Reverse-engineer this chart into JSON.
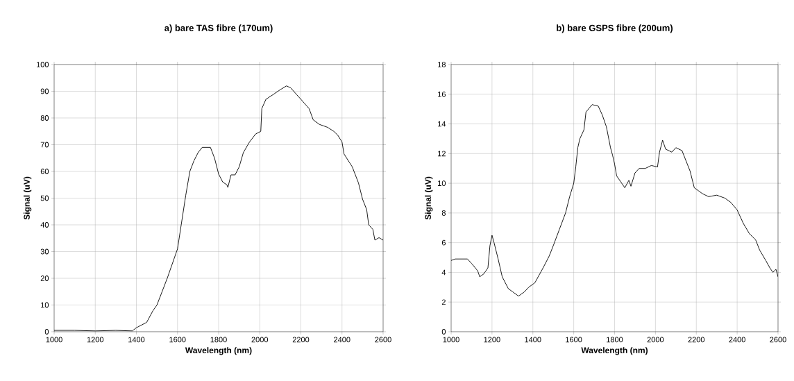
{
  "chart_data": [
    {
      "type": "line",
      "title": "a) bare TAS fibre (170um)",
      "xlabel": "Wavelength (nm)",
      "ylabel": "Signal (uV)",
      "color": "#000000",
      "grid": true,
      "xlim": [
        1000,
        2600
      ],
      "ylim": [
        0,
        100
      ],
      "xticks": [
        1000,
        1200,
        1400,
        1600,
        1800,
        2000,
        2200,
        2400,
        2600
      ],
      "yticks": [
        0,
        10,
        20,
        30,
        40,
        50,
        60,
        70,
        80,
        90,
        100
      ],
      "x": [
        1000,
        1100,
        1200,
        1300,
        1380,
        1400,
        1450,
        1480,
        1500,
        1550,
        1600,
        1620,
        1640,
        1660,
        1680,
        1700,
        1720,
        1760,
        1780,
        1800,
        1820,
        1840,
        1845,
        1860,
        1880,
        1900,
        1920,
        1950,
        1980,
        2005,
        2010,
        2030,
        2060,
        2100,
        2130,
        2150,
        2180,
        2200,
        2240,
        2260,
        2290,
        2330,
        2360,
        2380,
        2400,
        2410,
        2450,
        2480,
        2500,
        2520,
        2530,
        2550,
        2560,
        2580,
        2600
      ],
      "values": [
        0.5,
        0.5,
        0.3,
        0.5,
        0.3,
        1.5,
        3.5,
        7.8,
        10,
        20,
        31,
        41,
        51,
        60,
        64,
        67,
        69,
        69,
        65,
        59,
        56,
        55,
        54,
        58.7,
        58.7,
        61.7,
        67,
        71,
        74,
        75,
        83.5,
        87,
        88.5,
        90.6,
        92,
        91.3,
        88.7,
        87,
        83.5,
        79.3,
        77.6,
        76.5,
        75,
        73.5,
        71,
        66.5,
        61.7,
        55.7,
        49.6,
        45.7,
        40,
        38.3,
        34.3,
        35.2,
        34.3
      ]
    },
    {
      "type": "line",
      "title": "b) bare GSPS fibre (200um)",
      "xlabel": "Wavelength (nm)",
      "ylabel": "Signal (uV)",
      "color": "#000000",
      "grid": true,
      "xlim": [
        1000,
        2600
      ],
      "ylim": [
        0,
        18
      ],
      "xticks": [
        1000,
        1200,
        1400,
        1600,
        1800,
        2000,
        2200,
        2400,
        2600
      ],
      "yticks": [
        0,
        2,
        4,
        6,
        8,
        10,
        12,
        14,
        16,
        18
      ],
      "x": [
        1000,
        1020,
        1050,
        1080,
        1100,
        1130,
        1140,
        1160,
        1180,
        1190,
        1200,
        1210,
        1230,
        1250,
        1280,
        1300,
        1330,
        1360,
        1380,
        1410,
        1450,
        1480,
        1500,
        1530,
        1560,
        1580,
        1600,
        1610,
        1620,
        1630,
        1650,
        1660,
        1690,
        1720,
        1740,
        1760,
        1780,
        1790,
        1800,
        1810,
        1830,
        1850,
        1870,
        1880,
        1900,
        1920,
        1950,
        1980,
        2010,
        2020,
        2035,
        2050,
        2080,
        2100,
        2130,
        2150,
        2170,
        2190,
        2210,
        2230,
        2260,
        2300,
        2340,
        2370,
        2400,
        2430,
        2460,
        2490,
        2510,
        2540,
        2560,
        2575,
        2590,
        2600
      ],
      "values": [
        4.8,
        4.9,
        4.9,
        4.9,
        4.6,
        4.1,
        3.7,
        3.9,
        4.3,
        5.8,
        6.5,
        6.0,
        4.9,
        3.7,
        2.9,
        2.7,
        2.4,
        2.7,
        3.0,
        3.3,
        4.3,
        5.1,
        5.8,
        6.9,
        8.0,
        9.1,
        10.0,
        11.1,
        12.4,
        13.0,
        13.6,
        14.8,
        15.3,
        15.2,
        14.6,
        13.8,
        12.4,
        11.9,
        11.3,
        10.5,
        10.1,
        9.7,
        10.2,
        9.8,
        10.7,
        11.0,
        11.0,
        11.2,
        11.1,
        12.1,
        12.9,
        12.3,
        12.1,
        12.4,
        12.2,
        11.5,
        10.8,
        9.7,
        9.5,
        9.3,
        9.1,
        9.2,
        9.0,
        8.7,
        8.2,
        7.3,
        6.6,
        6.2,
        5.5,
        4.8,
        4.3,
        4.0,
        4.2,
        3.7
      ]
    }
  ]
}
